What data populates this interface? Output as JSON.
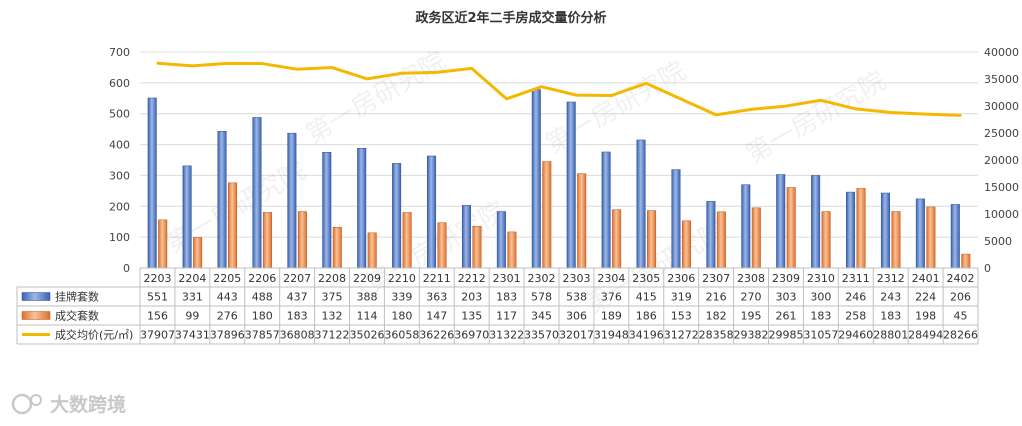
{
  "chart_data": {
    "type": "bar+line",
    "title": "政务区近2年二手房成交量价分析",
    "categories": [
      "2203",
      "2204",
      "2205",
      "2206",
      "2207",
      "2208",
      "2209",
      "2210",
      "2211",
      "2212",
      "2301",
      "2302",
      "2303",
      "2304",
      "2305",
      "2306",
      "2307",
      "2308",
      "2309",
      "2310",
      "2311",
      "2312",
      "2401",
      "2402"
    ],
    "series": [
      {
        "name": "挂牌套数",
        "kind": "bar",
        "axis": "left",
        "color": "#4472C4",
        "values": [
          551,
          331,
          443,
          488,
          437,
          375,
          388,
          339,
          363,
          203,
          183,
          578,
          538,
          376,
          415,
          319,
          216,
          270,
          303,
          300,
          246,
          243,
          224,
          206
        ]
      },
      {
        "name": "成交套数",
        "kind": "bar",
        "axis": "left",
        "color": "#ED7D31",
        "values": [
          156,
          99,
          276,
          180,
          183,
          132,
          114,
          180,
          147,
          135,
          117,
          345,
          306,
          189,
          186,
          153,
          182,
          195,
          261,
          183,
          258,
          183,
          198,
          45
        ]
      },
      {
        "name": "成交均价(元/㎡)",
        "kind": "line",
        "axis": "right",
        "color": "#F5B800",
        "values": [
          37907,
          37431,
          37896,
          37857,
          36808,
          37122,
          35026,
          36058,
          36226,
          36970,
          31322,
          33570,
          32017,
          31948,
          34196,
          31272,
          28358,
          29382,
          29985,
          31057,
          29460,
          28801,
          28494,
          28266
        ]
      }
    ],
    "y_left": {
      "min": 0,
      "max": 700,
      "ticks": [
        0,
        100,
        200,
        300,
        400,
        500,
        600,
        700
      ]
    },
    "y_right": {
      "min": 0,
      "max": 40000,
      "ticks": [
        0,
        5000,
        10000,
        15000,
        20000,
        25000,
        30000,
        35000,
        40000
      ]
    },
    "grid": true,
    "legend": "data-table"
  },
  "watermark_text": "第一房研究院",
  "footer_logo_text": "大数跨境"
}
